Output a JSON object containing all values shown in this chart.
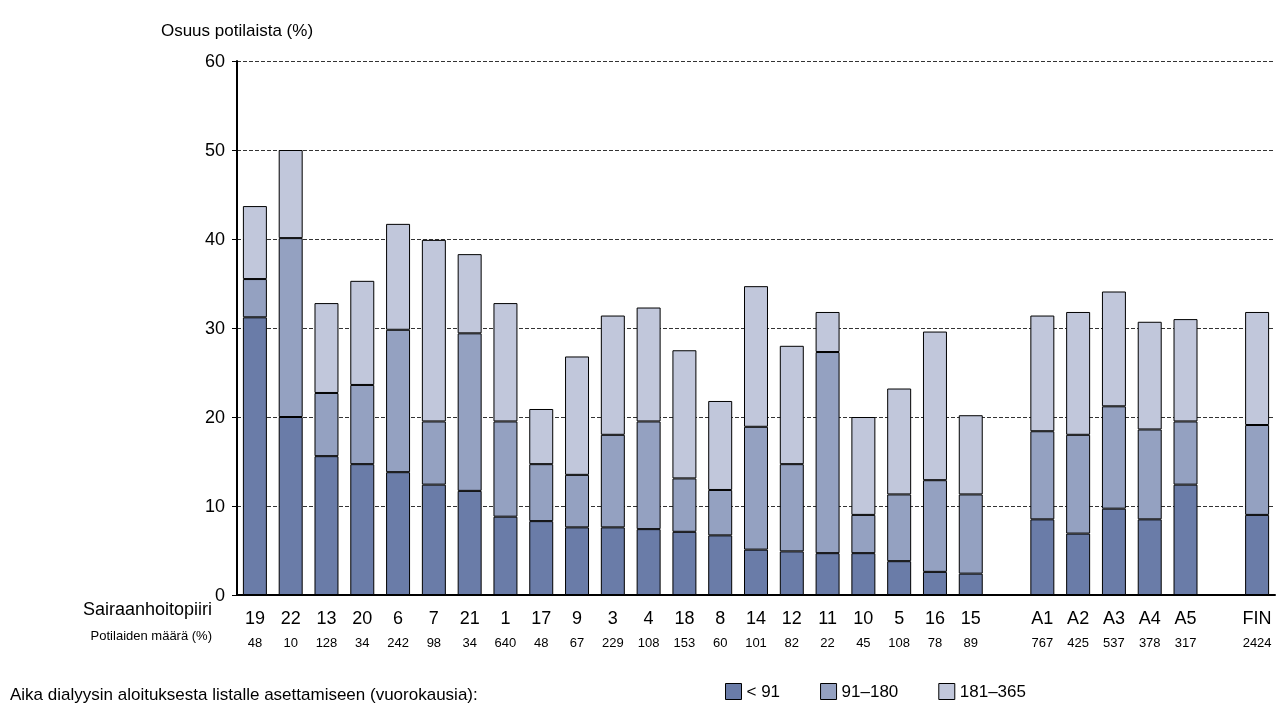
{
  "chart_data": {
    "type": "bar",
    "stacked": true,
    "ylabel": "Osuus potilaista (%)",
    "legend_title": "Aika dialyysin aloituksesta listalle asettamiseen (vuorokausia):",
    "legend": "bottom",
    "grid": "y",
    "ylim": [
      0,
      60
    ],
    "yticks": [
      0,
      10,
      20,
      30,
      40,
      50,
      60
    ],
    "annotations": [
      "Sairaanhoitopiiri",
      "Potilaiden määrä (%)"
    ],
    "categories": [
      "19\n48",
      "22\n10",
      "13\n128",
      "20\n34",
      "6\n242",
      "7\n98",
      "21\n34",
      "1\n640",
      "17\n48",
      "9\n67",
      "3\n229",
      "4\n108",
      "18\n153",
      "8\n60",
      "14\n101",
      "12\n82",
      "11\n22",
      "10\n45",
      "5\n108",
      "16\n78",
      "15\n89",
      null,
      "A1\n767",
      "A2\n425",
      "A3\n537",
      "A4\n378",
      "A5\n317",
      null,
      "FIN\n2424"
    ],
    "series": [
      {
        "name": "< 91",
        "color": "#6a7ca8",
        "values": [
          31.2,
          20.0,
          15.6,
          14.7,
          13.8,
          12.4,
          11.7,
          8.8,
          8.3,
          7.6,
          7.6,
          7.4,
          7.1,
          6.7,
          5.1,
          4.9,
          4.7,
          4.7,
          3.8,
          2.6,
          2.4,
          null,
          8.5,
          6.9,
          9.7,
          8.5,
          12.4,
          null,
          9.0
        ]
      },
      {
        "name": "91–180",
        "color": "#94a1c1",
        "values": [
          4.3,
          20.1,
          7.1,
          8.9,
          16.0,
          7.1,
          17.7,
          10.7,
          6.4,
          5.9,
          10.4,
          12.1,
          6.0,
          5.1,
          13.8,
          9.8,
          22.6,
          4.3,
          7.5,
          10.3,
          8.9,
          null,
          9.9,
          11.1,
          11.5,
          10.1,
          7.1,
          null,
          10.1
        ]
      },
      {
        "name": "181–365",
        "color": "#c1c7db",
        "values": [
          8.2,
          9.9,
          10.1,
          11.7,
          11.9,
          20.4,
          8.9,
          13.3,
          6.2,
          13.3,
          13.4,
          12.8,
          14.4,
          10.0,
          15.8,
          13.3,
          4.5,
          11.0,
          11.9,
          16.7,
          8.9,
          null,
          13.0,
          13.8,
          12.9,
          12.1,
          11.5,
          null,
          12.7
        ]
      }
    ]
  }
}
